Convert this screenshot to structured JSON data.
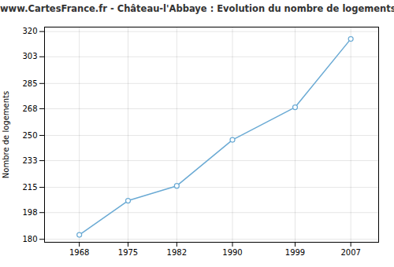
{
  "chart_data": {
    "type": "line",
    "title": "www.CartesFrance.fr - Château-l'Abbaye : Evolution du nombre de logements",
    "ylabel": "Nombre de logements",
    "x": [
      1968,
      1975,
      1982,
      1990,
      1999,
      2007
    ],
    "values": [
      183,
      206,
      216,
      247,
      269,
      315
    ],
    "color": "#6aaad4",
    "marker": "circle",
    "xlim": [
      1963,
      2011
    ],
    "xticks": [
      1968,
      1975,
      1982,
      1990,
      1999,
      2007
    ],
    "ylim": [
      178,
      323
    ],
    "yticks": [
      180,
      198,
      215,
      233,
      250,
      268,
      285,
      303,
      320
    ],
    "grid": true
  }
}
